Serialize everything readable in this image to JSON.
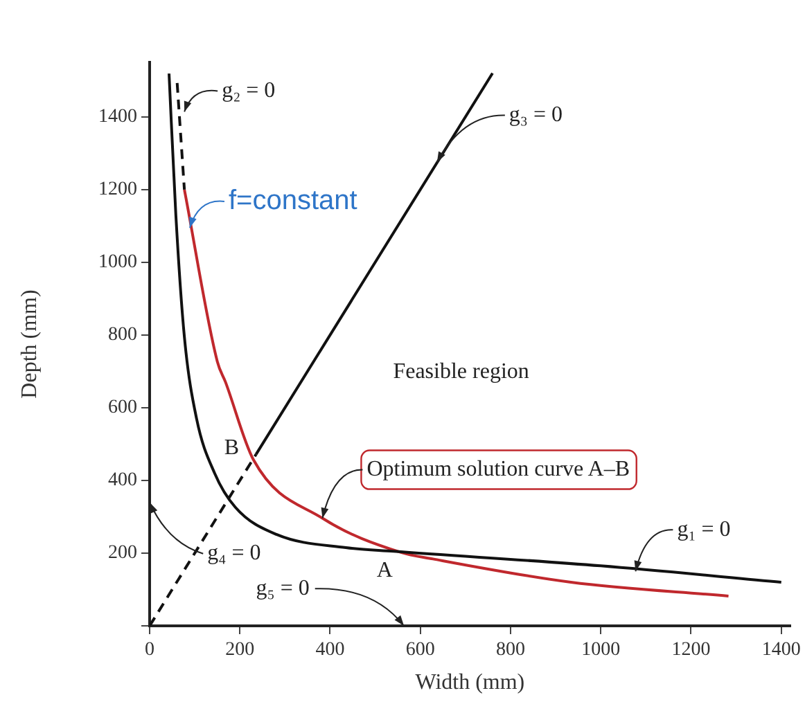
{
  "chart_data": {
    "type": "line",
    "xlabel": "Width (mm)",
    "ylabel": "Depth (mm)",
    "xlim": [
      0,
      1420
    ],
    "ylim": [
      0,
      1550
    ],
    "xticks": [
      0,
      200,
      400,
      600,
      800,
      1000,
      1200,
      1400
    ],
    "yticks": [
      {
        "value": 0,
        "label": null
      },
      200,
      400,
      600,
      800,
      1000,
      1200,
      1400
    ],
    "grid": false,
    "legend": false,
    "marker": "none",
    "series": [
      {
        "color": "#111111",
        "line_style": "solid",
        "x": [
          43,
          58,
          77,
          104,
          144,
          190,
          282,
          435,
          540,
          1000,
          1400
        ],
        "values": [
          1519,
          1132,
          795,
          570,
          420,
          326,
          251,
          215,
          205,
          165,
          120
        ]
      },
      {
        "color": "#111111",
        "line_style": "dashed",
        "x": [
          61,
          77
        ],
        "values": [
          1493,
          1200
        ]
      },
      {
        "color": "#111111",
        "line_style": "solid",
        "x": [
          236,
          760
        ],
        "values": [
          472,
          1520
        ]
      },
      {
        "color": "#111111",
        "line_style": "dashed",
        "x": [
          0,
          236
        ],
        "values": [
          0,
          472
        ]
      },
      {
        "color": "#c0282d",
        "line_style": "solid",
        "x": [
          77,
          150,
          168,
          230,
          383,
          557,
          628,
          934,
          1283
        ],
        "values": [
          1200,
          727,
          671,
          457,
          296,
          202,
          184,
          120,
          82
        ]
      }
    ],
    "annotations": [
      {
        "text": "g₂ = 0",
        "x": 77,
        "y": 1414
      },
      {
        "text": "g₃ = 0",
        "x": 637,
        "y": 1275
      },
      {
        "text": "g₁ = 0",
        "x": 1077,
        "y": 150
      },
      "g₄ = 0",
      "g₅ = 0",
      {
        "text": "f=constant",
        "x": 89,
        "y": 1095
      },
      {
        "text": "Optimum solution curve A–B",
        "x": 383,
        "y": 296
      },
      "Feasible region",
      {
        "text": "A",
        "x": 540,
        "y": 205
      },
      {
        "text": "B",
        "x": 230,
        "y": 457
      }
    ]
  }
}
